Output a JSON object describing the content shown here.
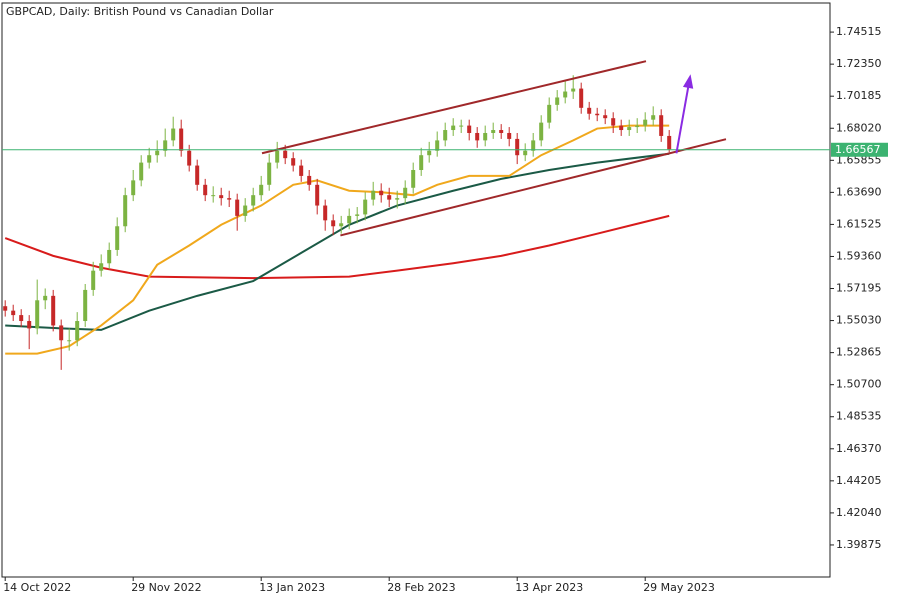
{
  "chart_data": {
    "type": "candlestick",
    "title": "GBPCAD, Daily:  British Pound vs Canadian Dollar",
    "bull_color": "#7cb342",
    "bear_color": "#c62828",
    "ohlc": {
      "open": [
        1.56,
        1.557,
        1.554,
        1.55,
        1.545,
        1.564,
        1.567,
        1.547,
        1.537,
        1.537,
        1.55,
        1.571,
        1.584,
        1.589,
        1.598,
        1.614,
        1.635,
        1.645,
        1.657,
        1.662,
        1.665,
        1.672,
        1.68,
        1.665,
        1.655,
        1.642,
        1.635,
        1.635,
        1.633,
        1.632,
        1.621,
        1.628,
        1.635,
        1.642,
        1.657,
        1.665,
        1.66,
        1.655,
        1.648,
        1.642,
        1.628,
        1.618,
        1.614,
        1.616,
        1.621,
        1.622,
        1.632,
        1.638,
        1.635,
        1.632,
        1.633,
        1.64,
        1.652,
        1.662,
        1.665,
        1.672,
        1.679,
        1.682,
        1.682,
        1.677,
        1.672,
        1.677,
        1.679,
        1.677,
        1.673,
        1.662,
        1.665,
        1.672,
        1.684,
        1.696,
        1.701,
        1.705,
        1.707,
        1.694,
        1.69,
        1.689,
        1.687,
        1.682,
        1.679,
        1.681,
        1.682,
        1.686,
        1.689,
        1.675
      ],
      "high": [
        1.564,
        1.561,
        1.558,
        1.554,
        1.578,
        1.572,
        1.571,
        1.551,
        1.545,
        1.556,
        1.575,
        1.59,
        1.595,
        1.603,
        1.62,
        1.64,
        1.652,
        1.662,
        1.667,
        1.672,
        1.68,
        1.688,
        1.686,
        1.669,
        1.659,
        1.646,
        1.641,
        1.64,
        1.638,
        1.636,
        1.633,
        1.64,
        1.648,
        1.663,
        1.671,
        1.669,
        1.664,
        1.659,
        1.652,
        1.646,
        1.632,
        1.622,
        1.621,
        1.626,
        1.627,
        1.637,
        1.644,
        1.643,
        1.64,
        1.638,
        1.645,
        1.657,
        1.667,
        1.671,
        1.678,
        1.684,
        1.687,
        1.686,
        1.686,
        1.681,
        1.682,
        1.684,
        1.683,
        1.681,
        1.677,
        1.67,
        1.677,
        1.689,
        1.701,
        1.706,
        1.712,
        1.716,
        1.711,
        1.698,
        1.694,
        1.693,
        1.691,
        1.686,
        1.686,
        1.687,
        1.691,
        1.695,
        1.693,
        1.679
      ],
      "low": [
        1.553,
        1.55,
        1.546,
        1.531,
        1.541,
        1.558,
        1.543,
        1.517,
        1.53,
        1.533,
        1.546,
        1.567,
        1.58,
        1.585,
        1.594,
        1.61,
        1.631,
        1.641,
        1.653,
        1.657,
        1.661,
        1.668,
        1.661,
        1.651,
        1.638,
        1.631,
        1.63,
        1.628,
        1.627,
        1.611,
        1.617,
        1.624,
        1.631,
        1.638,
        1.653,
        1.656,
        1.651,
        1.644,
        1.638,
        1.622,
        1.611,
        1.608,
        1.609,
        1.612,
        1.616,
        1.618,
        1.628,
        1.63,
        1.627,
        1.626,
        1.629,
        1.636,
        1.648,
        1.657,
        1.661,
        1.668,
        1.675,
        1.677,
        1.672,
        1.667,
        1.668,
        1.673,
        1.673,
        1.668,
        1.656,
        1.658,
        1.661,
        1.668,
        1.68,
        1.692,
        1.697,
        1.7,
        1.69,
        1.686,
        1.685,
        1.683,
        1.677,
        1.675,
        1.675,
        1.677,
        1.678,
        1.682,
        1.671,
        1.664
      ],
      "close": [
        1.557,
        1.554,
        1.55,
        1.545,
        1.564,
        1.567,
        1.547,
        1.537,
        1.537,
        1.55,
        1.571,
        1.584,
        1.589,
        1.598,
        1.614,
        1.635,
        1.645,
        1.657,
        1.662,
        1.665,
        1.672,
        1.68,
        1.665,
        1.655,
        1.642,
        1.635,
        1.635,
        1.633,
        1.632,
        1.621,
        1.628,
        1.635,
        1.642,
        1.657,
        1.665,
        1.66,
        1.655,
        1.648,
        1.642,
        1.628,
        1.618,
        1.614,
        1.616,
        1.621,
        1.622,
        1.632,
        1.638,
        1.635,
        1.632,
        1.633,
        1.64,
        1.652,
        1.662,
        1.665,
        1.672,
        1.679,
        1.682,
        1.682,
        1.677,
        1.672,
        1.677,
        1.679,
        1.677,
        1.673,
        1.662,
        1.665,
        1.672,
        1.684,
        1.696,
        1.701,
        1.705,
        1.707,
        1.694,
        1.69,
        1.689,
        1.687,
        1.682,
        1.679,
        1.681,
        1.682,
        1.686,
        1.689,
        1.675,
        1.666
      ]
    },
    "moving_averages": [
      {
        "color": "#d81b1b",
        "x": [
          0,
          6,
          12,
          18,
          31,
          43,
          49,
          56,
          62,
          68,
          74,
          83
        ],
        "values": [
          1.606,
          1.594,
          1.586,
          1.58,
          1.579,
          1.58,
          1.584,
          1.589,
          1.594,
          1.601,
          1.609,
          1.621
        ]
      },
      {
        "color": "#1b5a46",
        "x": [
          0,
          7,
          12,
          18,
          24,
          31,
          37,
          43,
          49,
          56,
          62,
          68,
          74,
          83
        ],
        "values": [
          1.547,
          1.545,
          1.544,
          1.557,
          1.567,
          1.577,
          1.596,
          1.615,
          1.628,
          1.638,
          1.646,
          1.652,
          1.657,
          1.663
        ]
      },
      {
        "color": "#f0a81c",
        "x": [
          0,
          4,
          8,
          12,
          16,
          19,
          23,
          27,
          32,
          36,
          39,
          43,
          47,
          51,
          54,
          58,
          63,
          67,
          71,
          74,
          78,
          83
        ],
        "values": [
          1.528,
          1.528,
          1.533,
          1.547,
          1.564,
          1.588,
          1.601,
          1.615,
          1.628,
          1.642,
          1.645,
          1.638,
          1.637,
          1.635,
          1.642,
          1.648,
          1.648,
          1.662,
          1.672,
          1.68,
          1.682,
          1.682
        ]
      }
    ],
    "trendlines": [
      {
        "color": "#a0282a",
        "x": [
          32.1,
          80.1
        ],
        "values": [
          1.6633,
          1.7255
        ]
      },
      {
        "color": "#a0282a",
        "x": [
          41.9,
          90.1
        ],
        "values": [
          1.6078,
          1.6728
        ]
      }
    ],
    "arrow": {
      "color": "#8a2be2",
      "x": [
        83.9,
        85.6
      ],
      "values": [
        1.6633,
        1.7147
      ]
    },
    "current_price": 1.66567,
    "current_color": "#3cb371",
    "xlim": [
      -0.4,
      103.1
    ],
    "ylim": [
      1.3771,
      1.7648
    ],
    "xticks": [
      {
        "value": 0,
        "label": "14 Oct 2022"
      },
      {
        "value": 16,
        "label": "29 Nov 2022"
      },
      {
        "value": 32,
        "label": "13 Jan 2023"
      },
      {
        "value": 48,
        "label": "28 Feb 2023"
      },
      {
        "value": 64,
        "label": "13 Apr 2023"
      },
      {
        "value": 80,
        "label": "29 May 2023"
      }
    ],
    "yticks": [
      1.74515,
      {
        "value": 1.7235,
        "label": "1.72350"
      },
      1.70185,
      {
        "value": 1.6802,
        "label": "1.68020"
      },
      1.65855,
      {
        "value": 1.6369,
        "label": "1.63690"
      },
      1.61525,
      {
        "value": 1.5936,
        "label": "1.59360"
      },
      1.57195,
      {
        "value": 1.5503,
        "label": "1.55030"
      },
      1.52865,
      {
        "value": 1.507,
        "label": "1.50700"
      },
      1.48535,
      {
        "value": 1.4637,
        "label": "1.46370"
      },
      1.44205,
      {
        "value": 1.4204,
        "label": "1.42040"
      },
      1.39875
    ]
  }
}
